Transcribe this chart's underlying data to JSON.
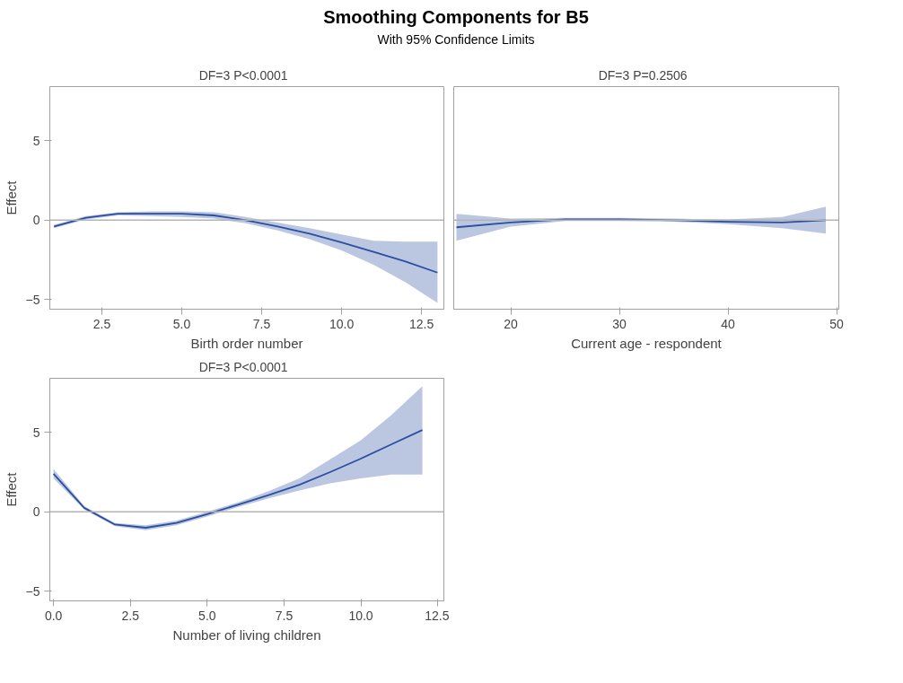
{
  "chart_data": [
    {
      "type": "other",
      "title": "Smoothing Components for B5",
      "subtitle": "With 95% Confidence Limits"
    },
    {
      "type": "line",
      "title": "DF=3   P<0.0001",
      "xlabel": "Birth order number",
      "ylabel": "Effect",
      "xlim": [
        0.87,
        13.2
      ],
      "ylim": [
        -5.6,
        8.4
      ],
      "xticks": [
        {
          "value": 2.5,
          "label": "2.5"
        },
        {
          "value": 5,
          "label": "5.0"
        },
        {
          "value": 7.5,
          "label": "7.5"
        },
        {
          "value": 10,
          "label": "10.0"
        },
        {
          "value": 12.5,
          "label": "12.5"
        }
      ],
      "yticks": [
        -5,
        0,
        5
      ],
      "x": [
        1,
        2,
        3,
        4,
        5,
        6,
        7,
        8,
        9,
        10,
        11,
        12,
        13
      ],
      "series": [
        {
          "color": "#2a4fa0",
          "values": [
            -0.4,
            0.15,
            0.4,
            0.4,
            0.4,
            0.3,
            0.0,
            -0.4,
            -0.85,
            -1.4,
            -2.0,
            -2.6,
            -3.3
          ],
          "lower": [
            -0.5,
            0.05,
            0.3,
            0.25,
            0.2,
            0.1,
            -0.2,
            -0.65,
            -1.2,
            -1.9,
            -2.8,
            -3.9,
            -5.2
          ],
          "upper": [
            -0.3,
            0.25,
            0.5,
            0.55,
            0.55,
            0.5,
            0.2,
            -0.15,
            -0.5,
            -0.9,
            -1.3,
            -1.35,
            -1.35
          ]
        }
      ],
      "ref_lines": [
        {
          "axis": "y",
          "value": 0,
          "color": "#b4b4b4"
        }
      ],
      "grid": false
    },
    {
      "type": "line",
      "title": "DF=3   P=0.2506",
      "xlabel": "Current age - respondent",
      "xlim": [
        14.75,
        50.2
      ],
      "ylim": [
        -5.6,
        8.4
      ],
      "xticks": [
        20,
        30,
        40,
        50
      ],
      "tick_labels": "x",
      "x": [
        15,
        20,
        25,
        30,
        35,
        40,
        45,
        49
      ],
      "series": [
        {
          "color": "#2a4fa0",
          "values": [
            -0.45,
            -0.15,
            0.05,
            0.05,
            0.0,
            -0.1,
            -0.15,
            0.0
          ],
          "lower": [
            -1.3,
            -0.4,
            -0.05,
            -0.05,
            -0.1,
            -0.25,
            -0.5,
            -0.85
          ],
          "upper": [
            0.4,
            0.1,
            0.15,
            0.15,
            0.1,
            0.05,
            0.2,
            0.85
          ]
        }
      ],
      "ref_lines": [
        {
          "axis": "y",
          "value": 0,
          "color": "#b4b4b4"
        }
      ],
      "grid": false
    },
    {
      "type": "line",
      "title": "DF=3   P<0.0001",
      "xlabel": "Number of living children",
      "ylabel": "Effect",
      "xlim": [
        -0.12,
        12.7
      ],
      "ylim": [
        -5.6,
        8.4
      ],
      "xticks": [
        {
          "value": 0,
          "label": "0.0"
        },
        {
          "value": 2.5,
          "label": "2.5"
        },
        {
          "value": 5,
          "label": "5.0"
        },
        {
          "value": 7.5,
          "label": "7.5"
        },
        {
          "value": 10,
          "label": "10.0"
        },
        {
          "value": 12.5,
          "label": "12.5"
        }
      ],
      "yticks": [
        -5,
        0,
        5
      ],
      "x": [
        0,
        1,
        2,
        3,
        4,
        5,
        6,
        7,
        8,
        9,
        10,
        11,
        12
      ],
      "series": [
        {
          "color": "#2a4fa0",
          "values": [
            2.4,
            0.25,
            -0.8,
            -1.0,
            -0.7,
            -0.15,
            0.45,
            1.05,
            1.7,
            2.5,
            3.35,
            4.25,
            5.15
          ],
          "lower": [
            2.1,
            0.15,
            -0.9,
            -1.15,
            -0.85,
            -0.3,
            0.3,
            0.85,
            1.35,
            1.8,
            2.1,
            2.35,
            2.35
          ],
          "upper": [
            2.7,
            0.35,
            -0.7,
            -0.85,
            -0.55,
            0.0,
            0.6,
            1.3,
            2.1,
            3.3,
            4.5,
            6.1,
            7.9
          ]
        }
      ],
      "ref_lines": [
        {
          "axis": "y",
          "value": 0,
          "color": "#b4b4b4"
        }
      ],
      "grid": false
    }
  ]
}
